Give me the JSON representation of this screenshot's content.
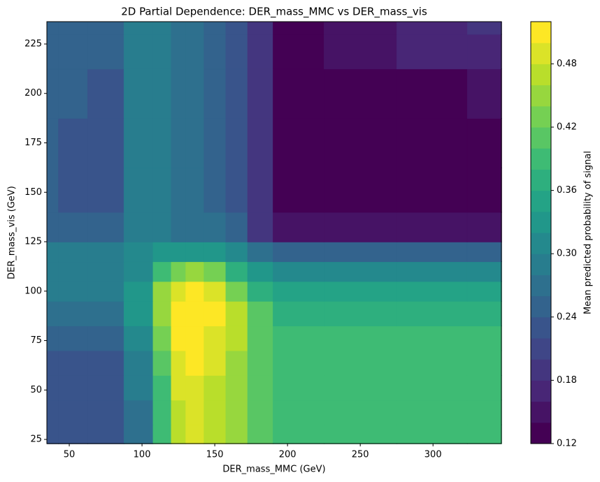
{
  "chart_data": {
    "type": "contour",
    "title": "2D Partial Dependence: DER_mass_MMC vs DER_mass_vis",
    "x_label": "DER_mass_MMC (GeV)",
    "y_label": "DER_mass_vis (GeV)",
    "colorbar_label": "Mean predicted probability of signal",
    "colormap": "viridis",
    "x": [
      35,
      50,
      75,
      100,
      115,
      125,
      135,
      150,
      165,
      180,
      200,
      250,
      300,
      347
    ],
    "y": [
      25,
      40,
      50,
      65,
      75,
      90,
      100,
      110,
      120,
      130,
      150,
      175,
      200,
      225,
      235
    ],
    "z": [
      [
        0.22,
        0.22,
        0.22,
        0.27,
        0.38,
        0.47,
        0.49,
        0.46,
        0.44,
        0.41,
        0.39,
        0.39,
        0.39,
        0.39
      ],
      [
        0.22,
        0.22,
        0.22,
        0.27,
        0.38,
        0.47,
        0.49,
        0.46,
        0.44,
        0.41,
        0.39,
        0.39,
        0.39,
        0.39
      ],
      [
        0.22,
        0.22,
        0.22,
        0.28,
        0.39,
        0.48,
        0.49,
        0.47,
        0.44,
        0.41,
        0.39,
        0.39,
        0.39,
        0.39
      ],
      [
        0.23,
        0.23,
        0.23,
        0.29,
        0.41,
        0.49,
        0.5,
        0.48,
        0.45,
        0.41,
        0.39,
        0.39,
        0.39,
        0.39
      ],
      [
        0.25,
        0.25,
        0.25,
        0.31,
        0.43,
        0.5,
        0.51,
        0.49,
        0.46,
        0.41,
        0.39,
        0.39,
        0.39,
        0.39
      ],
      [
        0.27,
        0.27,
        0.27,
        0.32,
        0.45,
        0.51,
        0.51,
        0.5,
        0.46,
        0.4,
        0.37,
        0.37,
        0.37,
        0.37
      ],
      [
        0.28,
        0.28,
        0.28,
        0.32,
        0.44,
        0.49,
        0.5,
        0.48,
        0.43,
        0.37,
        0.34,
        0.34,
        0.34,
        0.34
      ],
      [
        0.29,
        0.29,
        0.29,
        0.31,
        0.39,
        0.43,
        0.44,
        0.42,
        0.37,
        0.33,
        0.31,
        0.31,
        0.31,
        0.31
      ],
      [
        0.28,
        0.28,
        0.28,
        0.3,
        0.33,
        0.33,
        0.33,
        0.32,
        0.3,
        0.26,
        0.24,
        0.24,
        0.24,
        0.24
      ],
      [
        0.25,
        0.25,
        0.24,
        0.28,
        0.28,
        0.27,
        0.27,
        0.26,
        0.24,
        0.19,
        0.15,
        0.15,
        0.15,
        0.15
      ],
      [
        0.24,
        0.23,
        0.22,
        0.28,
        0.28,
        0.26,
        0.26,
        0.25,
        0.23,
        0.19,
        0.13,
        0.13,
        0.13,
        0.13
      ],
      [
        0.24,
        0.23,
        0.22,
        0.28,
        0.28,
        0.26,
        0.26,
        0.25,
        0.23,
        0.19,
        0.13,
        0.13,
        0.13,
        0.13
      ],
      [
        0.24,
        0.24,
        0.23,
        0.28,
        0.28,
        0.26,
        0.26,
        0.25,
        0.23,
        0.19,
        0.13,
        0.13,
        0.13,
        0.15
      ],
      [
        0.24,
        0.24,
        0.24,
        0.28,
        0.28,
        0.26,
        0.26,
        0.25,
        0.23,
        0.19,
        0.13,
        0.14,
        0.16,
        0.17
      ],
      [
        0.24,
        0.24,
        0.24,
        0.28,
        0.28,
        0.26,
        0.26,
        0.25,
        0.23,
        0.19,
        0.13,
        0.15,
        0.17,
        0.18
      ]
    ],
    "levels": [
      0.12,
      0.14,
      0.16,
      0.18,
      0.2,
      0.22,
      0.24,
      0.26,
      0.28,
      0.3,
      0.32,
      0.34,
      0.36,
      0.38,
      0.4,
      0.42,
      0.44,
      0.46,
      0.48,
      0.5,
      0.52
    ],
    "xlim": [
      34.6,
      347
    ],
    "ylim": [
      22.9,
      236.3
    ],
    "xticks": [
      50,
      100,
      150,
      200,
      250,
      300
    ],
    "yticks": [
      25,
      50,
      75,
      100,
      125,
      150,
      175,
      200,
      225
    ],
    "colorbar_ticks": [
      0.12,
      0.18,
      0.24,
      {
        "value": 0.3,
        "label": "0.30"
      },
      0.36,
      0.42,
      0.48
    ]
  }
}
